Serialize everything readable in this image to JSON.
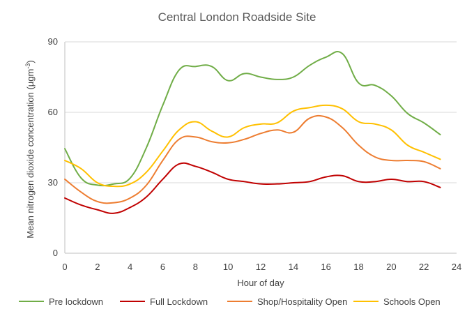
{
  "chart_data": {
    "type": "line",
    "title": "Central London Roadside Site",
    "xlabel": "Hour of day",
    "ylabel_main": "Mean nitrogen dioxide concentration (µgm",
    "ylabel_sup": "-3",
    "ylabel_end": ")",
    "xlim": [
      0,
      24
    ],
    "ylim": [
      0,
      90
    ],
    "x_ticks": [
      0,
      2,
      4,
      6,
      8,
      10,
      12,
      14,
      16,
      18,
      20,
      22,
      24
    ],
    "y_ticks": [
      0,
      30,
      60,
      90
    ],
    "grid": "horizontal",
    "legend_position": "bottom",
    "x": [
      0,
      1,
      2,
      3,
      4,
      5,
      6,
      7,
      8,
      9,
      10,
      11,
      12,
      13,
      14,
      15,
      16,
      17,
      18,
      19,
      20,
      21,
      22,
      23
    ],
    "series": [
      {
        "name": "Pre lockdown",
        "color": "#70ad47",
        "values": [
          44.5,
          32,
          29,
          29.5,
          32,
          45,
          63,
          78,
          79.5,
          79.5,
          73.5,
          76.5,
          75,
          74,
          75,
          80,
          83.5,
          85,
          72.5,
          71.5,
          67,
          59.5,
          55.5,
          50.5
        ]
      },
      {
        "name": "Full Lockdown",
        "color": "#c00000",
        "values": [
          23.5,
          20.5,
          18.5,
          17,
          19.5,
          24,
          31.5,
          38,
          37,
          34.5,
          31.5,
          30.5,
          29.5,
          29.5,
          30,
          30.5,
          32.5,
          33,
          30.5,
          30.5,
          31.5,
          30.5,
          30.5,
          28
        ]
      },
      {
        "name": "Shop/Hospitality Open",
        "color": "#ed7d31",
        "values": [
          31.5,
          26,
          22,
          21.5,
          23.5,
          29,
          39.5,
          48.5,
          49.5,
          47.5,
          47,
          48.5,
          51,
          52.5,
          51.5,
          57.5,
          58,
          53.5,
          46,
          41,
          39.5,
          39.5,
          39,
          36
        ]
      },
      {
        "name": "Schools Open",
        "color": "#ffc000",
        "values": [
          39.5,
          36,
          30,
          28.5,
          29.5,
          34.5,
          43.5,
          52.5,
          56,
          52,
          49.5,
          53.5,
          55,
          55.5,
          60.5,
          62,
          63,
          61.5,
          56,
          55,
          52.5,
          46,
          43,
          40
        ]
      }
    ]
  }
}
